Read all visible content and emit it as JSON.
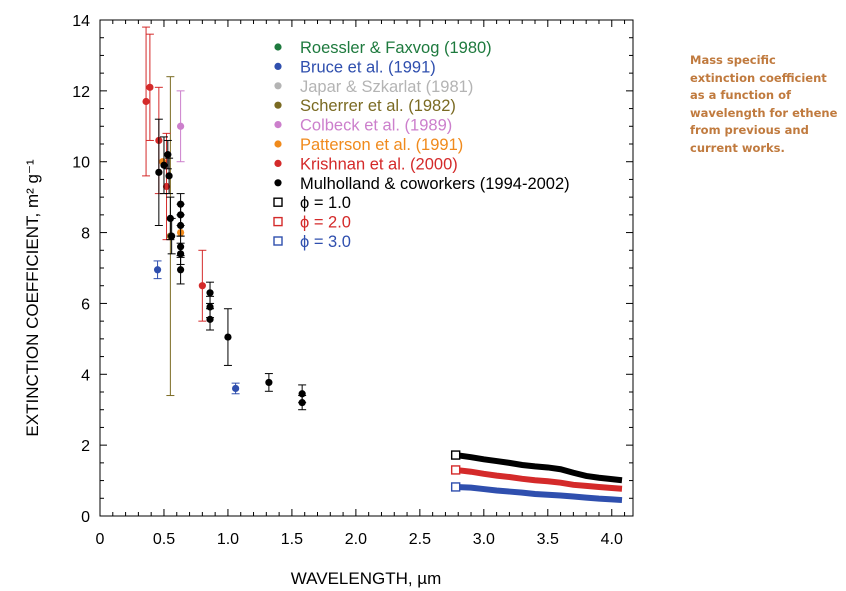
{
  "caption": "Mass specific extinction coefficient as a function of wavelength for ethene from previous and current works.",
  "chart_data": {
    "type": "scatter",
    "xlabel": "WAVELENGTH, µm",
    "ylabel": "EXTINCTION COEFFICIENT, m² g⁻¹",
    "xlim": [
      0,
      4.1
    ],
    "ylim": [
      0,
      14
    ],
    "xticks": [
      "0",
      "0.5",
      "1.0",
      "1.5",
      "2.0",
      "2.5",
      "3.0",
      "3.5",
      "4.0"
    ],
    "yticks": [
      "0",
      "2",
      "4",
      "6",
      "8",
      "10",
      "12",
      "14"
    ],
    "legend_position": "top",
    "series": [
      {
        "name": "Roessler & Faxvog (1980)",
        "color": "#1e7a3e",
        "marker": "dot",
        "points": []
      },
      {
        "name": "Bruce et al. (1991)",
        "color": "#2f4fae",
        "marker": "dot",
        "points": [
          {
            "x": 0.45,
            "y": 6.95,
            "err": 0.25
          },
          {
            "x": 1.06,
            "y": 3.6,
            "err": 0.15
          }
        ]
      },
      {
        "name": "Japar & Szkarlat (1981)",
        "color": "#b4b4b4",
        "marker": "dot",
        "points": []
      },
      {
        "name": "Scherrer et al. (1982)",
        "color": "#7a6a22",
        "marker": "dot",
        "points": [
          {
            "x": 0.55,
            "y": 7.9,
            "err_low": 4.5,
            "err_high": 4.5
          }
        ]
      },
      {
        "name": "Colbeck et al. (1989)",
        "color": "#cc7fcc",
        "marker": "dot",
        "points": [
          {
            "x": 0.63,
            "y": 11.0,
            "err": 1.0
          }
        ]
      },
      {
        "name": "Patterson et al. (1991)",
        "color": "#f08a1c",
        "marker": "dot",
        "points": [
          {
            "x": 0.49,
            "y": 10.0,
            "err": 0
          },
          {
            "x": 0.63,
            "y": 8.0,
            "err": 0
          }
        ]
      },
      {
        "name": "Krishnan et al. (2000)",
        "color": "#d42a2a",
        "marker": "dot",
        "points": [
          {
            "x": 0.36,
            "y": 11.7,
            "err": 2.1
          },
          {
            "x": 0.39,
            "y": 12.1,
            "err": 1.5
          },
          {
            "x": 0.46,
            "y": 10.6,
            "err": 1.5
          },
          {
            "x": 0.52,
            "y": 9.3,
            "err": 1.5
          },
          {
            "x": 0.8,
            "y": 6.5,
            "err": 1.0
          }
        ]
      },
      {
        "name": "Mulholland & coworkers (1994-2002)",
        "color": "#000000",
        "marker": "dot",
        "points": [
          {
            "x": 0.46,
            "y": 9.7,
            "err": 1.5
          },
          {
            "x": 0.5,
            "y": 9.9,
            "err": 0.8
          },
          {
            "x": 0.53,
            "y": 10.2,
            "err": 0.4
          },
          {
            "x": 0.54,
            "y": 9.6,
            "err": 0.5
          },
          {
            "x": 0.55,
            "y": 8.4,
            "err": 0.6
          },
          {
            "x": 0.56,
            "y": 7.9,
            "err": 0.5
          },
          {
            "x": 0.63,
            "y": 8.8,
            "err": 0.3
          },
          {
            "x": 0.63,
            "y": 8.5,
            "err": 0.3
          },
          {
            "x": 0.63,
            "y": 8.2,
            "err": 0.3
          },
          {
            "x": 0.63,
            "y": 7.6,
            "err": 0.3
          },
          {
            "x": 0.63,
            "y": 7.4,
            "err": 0.3
          },
          {
            "x": 0.63,
            "y": 6.95,
            "err": 0.4
          },
          {
            "x": 0.86,
            "y": 6.3,
            "err": 0.3
          },
          {
            "x": 0.86,
            "y": 5.9,
            "err": 0.3
          },
          {
            "x": 0.86,
            "y": 5.55,
            "err": 0.3
          },
          {
            "x": 1.0,
            "y": 5.05,
            "err": 0.8
          },
          {
            "x": 1.32,
            "y": 3.77,
            "err": 0.25
          },
          {
            "x": 1.58,
            "y": 3.45,
            "err": 0.25
          },
          {
            "x": 1.58,
            "y": 3.2,
            "err": 0.2
          }
        ]
      },
      {
        "name": "ϕ = 1.0",
        "color": "#000000",
        "marker": "square",
        "curve": "phi1",
        "points": [
          {
            "x": 2.78,
            "y": 1.72
          },
          {
            "x": 2.9,
            "y": 1.66
          },
          {
            "x": 3.0,
            "y": 1.6
          },
          {
            "x": 3.1,
            "y": 1.55
          },
          {
            "x": 3.2,
            "y": 1.5
          },
          {
            "x": 3.3,
            "y": 1.44
          },
          {
            "x": 3.4,
            "y": 1.4
          },
          {
            "x": 3.5,
            "y": 1.37
          },
          {
            "x": 3.6,
            "y": 1.32
          },
          {
            "x": 3.7,
            "y": 1.22
          },
          {
            "x": 3.8,
            "y": 1.13
          },
          {
            "x": 3.9,
            "y": 1.08
          },
          {
            "x": 4.0,
            "y": 1.04
          },
          {
            "x": 4.08,
            "y": 1.01
          }
        ]
      },
      {
        "name": "ϕ = 2.0",
        "color": "#d42a2a",
        "marker": "square",
        "curve": "phi2",
        "points": [
          {
            "x": 2.78,
            "y": 1.3
          },
          {
            "x": 2.9,
            "y": 1.25
          },
          {
            "x": 3.0,
            "y": 1.19
          },
          {
            "x": 3.1,
            "y": 1.14
          },
          {
            "x": 3.2,
            "y": 1.1
          },
          {
            "x": 3.3,
            "y": 1.05
          },
          {
            "x": 3.4,
            "y": 1.01
          },
          {
            "x": 3.5,
            "y": 0.98
          },
          {
            "x": 3.6,
            "y": 0.94
          },
          {
            "x": 3.7,
            "y": 0.88
          },
          {
            "x": 3.8,
            "y": 0.85
          },
          {
            "x": 3.9,
            "y": 0.82
          },
          {
            "x": 4.0,
            "y": 0.79
          },
          {
            "x": 4.08,
            "y": 0.77
          }
        ]
      },
      {
        "name": "ϕ = 3.0",
        "color": "#2f4fae",
        "marker": "square",
        "curve": "phi3",
        "points": [
          {
            "x": 2.78,
            "y": 0.82
          },
          {
            "x": 2.9,
            "y": 0.8
          },
          {
            "x": 3.0,
            "y": 0.76
          },
          {
            "x": 3.1,
            "y": 0.72
          },
          {
            "x": 3.2,
            "y": 0.69
          },
          {
            "x": 3.3,
            "y": 0.66
          },
          {
            "x": 3.4,
            "y": 0.62
          },
          {
            "x": 3.5,
            "y": 0.6
          },
          {
            "x": 3.6,
            "y": 0.58
          },
          {
            "x": 3.7,
            "y": 0.55
          },
          {
            "x": 3.8,
            "y": 0.52
          },
          {
            "x": 3.9,
            "y": 0.49
          },
          {
            "x": 4.0,
            "y": 0.47
          },
          {
            "x": 4.08,
            "y": 0.45
          }
        ]
      }
    ]
  }
}
